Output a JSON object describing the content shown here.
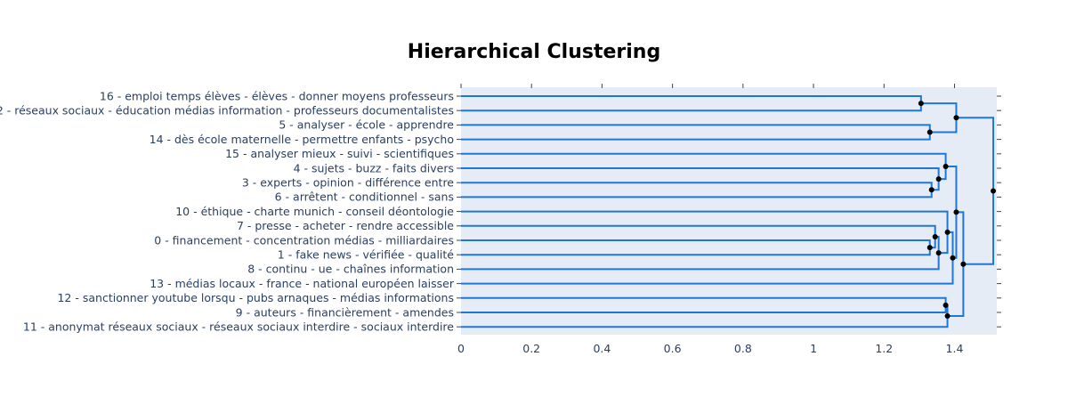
{
  "chart_data": {
    "type": "dendrogram",
    "title": "Hierarchical Clustering",
    "xlim": [
      0,
      1.52
    ],
    "x_ticks": [
      0,
      0.2,
      0.4,
      0.6,
      0.8,
      1,
      1.2,
      1.4
    ],
    "x_tick_labels": [
      "0",
      "0.2",
      "0.4",
      "0.6",
      "0.8",
      "1",
      "1.2",
      "1.4"
    ],
    "leaves": [
      "16 - emploi temps élèves - élèves - donner moyens professeurs",
      "2 - réseaux sociaux - éducation médias information - professeurs documentalistes",
      "5 - analyser - école - apprendre",
      "14 - dès école maternelle - permettre enfants - psycho",
      "15 - analyser mieux - suivi - scientifiques",
      "4 - sujets - buzz - faits divers",
      "3 - experts - opinion - différence entre",
      "6 - arrêtent - conditionnel - sans",
      "10 - éthique - charte munich - conseil déontologie",
      "7 - presse - acheter - rendre accessible",
      "0 - financement - concentration médias - milliardaires",
      "1 - fake news - vérifiée - qualité",
      "8 - continu - ue - chaînes information",
      "13 - médias locaux - france - national européen laisser",
      "12 - sanctionner youtube lorsqu - pubs arnaques - médias informations",
      "9 - auteurs - financièrement - amendes",
      "11 - anonymat réseaux sociaux - réseaux sociaux interdire - sociaux interdire"
    ],
    "merges": [
      {
        "id": "A",
        "children": [
          "L0",
          "L1"
        ],
        "distance": 1.305
      },
      {
        "id": "B",
        "children": [
          "L2",
          "L3"
        ],
        "distance": 1.33
      },
      {
        "id": "C",
        "children": [
          "A",
          "B"
        ],
        "distance": 1.405
      },
      {
        "id": "D",
        "children": [
          "L6",
          "L7"
        ],
        "distance": 1.335
      },
      {
        "id": "E",
        "children": [
          "L5",
          "D"
        ],
        "distance": 1.355
      },
      {
        "id": "F",
        "children": [
          "L4",
          "E"
        ],
        "distance": 1.375
      },
      {
        "id": "G",
        "children": [
          "L10",
          "L11"
        ],
        "distance": 1.33
      },
      {
        "id": "H",
        "children": [
          "L9",
          "G"
        ],
        "distance": 1.345
      },
      {
        "id": "I",
        "children": [
          "H",
          "L12"
        ],
        "distance": 1.355
      },
      {
        "id": "J",
        "children": [
          "L8",
          "I"
        ],
        "distance": 1.38
      },
      {
        "id": "K",
        "children": [
          "J",
          "L13"
        ],
        "distance": 1.395
      },
      {
        "id": "M",
        "children": [
          "F",
          "K"
        ],
        "distance": 1.405
      },
      {
        "id": "N",
        "children": [
          "L14",
          "L15"
        ],
        "distance": 1.375
      },
      {
        "id": "O",
        "children": [
          "N",
          "L16"
        ],
        "distance": 1.38
      },
      {
        "id": "P",
        "children": [
          "M",
          "O"
        ],
        "distance": 1.425
      },
      {
        "id": "Q",
        "children": [
          "C",
          "P"
        ],
        "distance": 1.51
      }
    ],
    "colors": {
      "link": "#1f77d4",
      "node": "#000000",
      "plot_bg": "#e5ecf6",
      "text": "#2a3f5f"
    }
  }
}
